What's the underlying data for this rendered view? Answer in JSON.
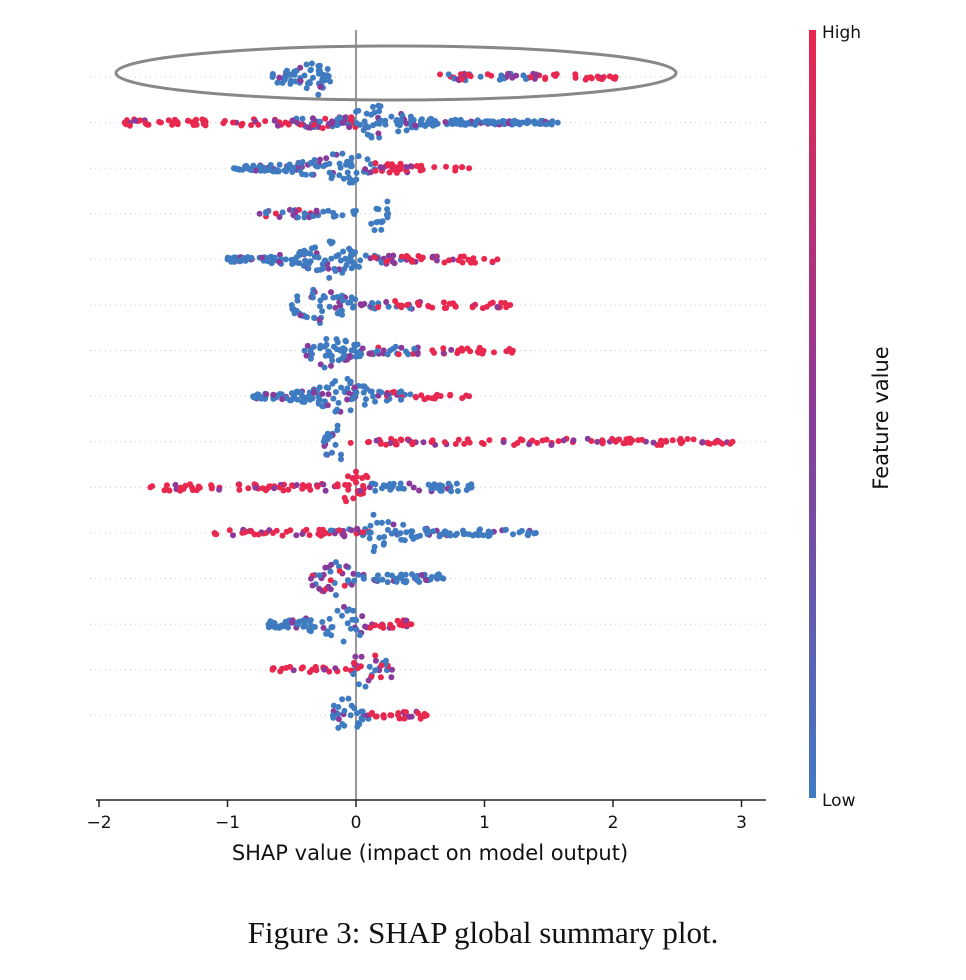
{
  "chart_data": {
    "type": "scatter",
    "subtype": "shap-beeswarm",
    "xlabel": "SHAP value (impact on model output)",
    "xlim": [
      -2,
      3.2
    ],
    "xticks": [
      -2,
      -1,
      0,
      1,
      2,
      3
    ],
    "xtick_labels": [
      "−2",
      "−1",
      "0",
      "1",
      "2",
      "3"
    ],
    "feature_labels_visible": false,
    "highlight": "ellipse around top feature row",
    "colorbar": {
      "label": "Feature value",
      "high_label": "High",
      "low_label": "Low",
      "high_color": "#e8284f",
      "low_color": "#3f7bc1",
      "mid_color": "#8a3a9a"
    },
    "rows": [
      {
        "min": -0.65,
        "max": 2.02,
        "segments": [
          {
            "from": -0.65,
            "to": -0.2,
            "color": "low",
            "density": 1.0,
            "center": -0.32
          },
          {
            "from": 0.55,
            "to": 1.4,
            "color": "mixed",
            "density": 0.35
          },
          {
            "from": 1.4,
            "to": 2.02,
            "color": "high",
            "density": 0.3
          }
        ]
      },
      {
        "min": -1.8,
        "max": 1.57,
        "segments": [
          {
            "from": -1.8,
            "to": -0.5,
            "color": "high",
            "density": 0.35
          },
          {
            "from": -0.5,
            "to": 0.0,
            "color": "mixed",
            "density": 0.9
          },
          {
            "from": 0.0,
            "to": 1.57,
            "color": "low",
            "density": 0.85,
            "center": 0.15
          }
        ]
      },
      {
        "min": -0.95,
        "max": 0.88,
        "segments": [
          {
            "from": -0.95,
            "to": 0.15,
            "color": "low",
            "density": 0.9,
            "center": -0.1
          },
          {
            "from": 0.15,
            "to": 0.45,
            "color": "high",
            "density": 0.8
          },
          {
            "from": 0.45,
            "to": 0.88,
            "color": "high",
            "density": 0.25
          }
        ]
      },
      {
        "min": -0.75,
        "max": 0.25,
        "segments": [
          {
            "from": -0.75,
            "to": -0.35,
            "color": "mixed",
            "density": 0.5
          },
          {
            "from": -0.35,
            "to": 0.05,
            "color": "low",
            "density": 0.3
          },
          {
            "from": 0.1,
            "to": 0.25,
            "color": "low",
            "density": 0.8,
            "center": 0.18
          }
        ]
      },
      {
        "min": -1.0,
        "max": 1.1,
        "segments": [
          {
            "from": -1.0,
            "to": 0.1,
            "color": "low",
            "density": 0.9,
            "center": -0.2
          },
          {
            "from": 0.1,
            "to": 0.35,
            "color": "mixed",
            "density": 0.6
          },
          {
            "from": 0.35,
            "to": 1.1,
            "color": "high",
            "density": 0.35
          }
        ]
      },
      {
        "min": -0.5,
        "max": 1.2,
        "segments": [
          {
            "from": -0.5,
            "to": 0.0,
            "color": "low",
            "density": 0.9,
            "center": -0.28
          },
          {
            "from": 0.0,
            "to": 0.5,
            "color": "mixed",
            "density": 0.5
          },
          {
            "from": 0.5,
            "to": 1.2,
            "color": "high",
            "density": 0.3
          }
        ]
      },
      {
        "min": -0.4,
        "max": 1.22,
        "segments": [
          {
            "from": -0.4,
            "to": 0.05,
            "color": "low",
            "density": 1.0,
            "center": -0.25
          },
          {
            "from": 0.05,
            "to": 0.5,
            "color": "mixed",
            "density": 0.5
          },
          {
            "from": 0.5,
            "to": 1.22,
            "color": "high",
            "density": 0.3
          }
        ]
      },
      {
        "min": -0.8,
        "max": 0.88,
        "segments": [
          {
            "from": -0.8,
            "to": 0.2,
            "color": "low",
            "density": 0.9,
            "center": -0.1
          },
          {
            "from": 0.2,
            "to": 0.45,
            "color": "mixed",
            "density": 0.7
          },
          {
            "from": 0.45,
            "to": 0.88,
            "color": "high",
            "density": 0.3
          }
        ]
      },
      {
        "min": -0.25,
        "max": 2.93,
        "segments": [
          {
            "from": -0.25,
            "to": -0.1,
            "color": "low",
            "density": 1.0,
            "center": -0.15
          },
          {
            "from": -0.05,
            "to": 2.93,
            "color": "high",
            "density": 0.3
          }
        ]
      },
      {
        "min": -1.6,
        "max": 0.9,
        "segments": [
          {
            "from": -1.6,
            "to": -1.05,
            "color": "high",
            "density": 0.35
          },
          {
            "from": -0.95,
            "to": -0.1,
            "color": "high",
            "density": 0.4
          },
          {
            "from": -0.1,
            "to": 0.1,
            "color": "high",
            "density": 1.0,
            "center": 0.0
          },
          {
            "from": 0.1,
            "to": 0.9,
            "color": "low",
            "density": 0.5
          }
        ]
      },
      {
        "min": -1.1,
        "max": 1.4,
        "segments": [
          {
            "from": -1.1,
            "to": -0.2,
            "color": "high",
            "density": 0.35
          },
          {
            "from": -0.2,
            "to": 0.1,
            "color": "mixed",
            "density": 0.6
          },
          {
            "from": 0.1,
            "to": 0.95,
            "color": "low",
            "density": 0.6,
            "center": 0.15
          },
          {
            "from": 0.95,
            "to": 1.4,
            "color": "low",
            "density": 0.4
          }
        ]
      },
      {
        "min": -0.35,
        "max": 0.68,
        "segments": [
          {
            "from": -0.35,
            "to": 0.0,
            "color": "mixed",
            "density": 0.8,
            "center": -0.15
          },
          {
            "from": 0.0,
            "to": 0.68,
            "color": "low",
            "density": 0.6
          }
        ]
      },
      {
        "min": -0.68,
        "max": 0.43,
        "segments": [
          {
            "from": -0.68,
            "to": 0.05,
            "color": "low",
            "density": 0.8,
            "center": -0.1
          },
          {
            "from": 0.05,
            "to": 0.43,
            "color": "high",
            "density": 0.5
          }
        ]
      },
      {
        "min": -0.65,
        "max": 0.28,
        "segments": [
          {
            "from": -0.65,
            "to": -0.05,
            "color": "high",
            "density": 0.3
          },
          {
            "from": -0.05,
            "to": 0.28,
            "color": "mixed",
            "density": 0.8,
            "center": 0.08
          }
        ]
      },
      {
        "min": -0.18,
        "max": 0.55,
        "segments": [
          {
            "from": -0.18,
            "to": 0.1,
            "color": "low",
            "density": 0.9,
            "center": -0.08
          },
          {
            "from": 0.1,
            "to": 0.55,
            "color": "high",
            "density": 0.5
          }
        ]
      }
    ]
  },
  "caption": "Figure 3: SHAP global summary plot."
}
